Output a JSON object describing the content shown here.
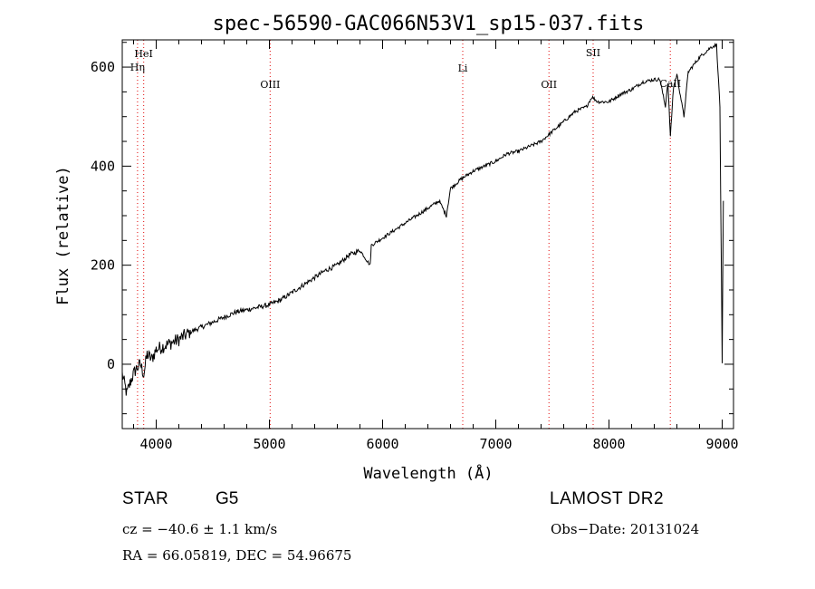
{
  "chart_data": {
    "type": "line",
    "title": "spec-56590-GAC066N53V1_sp15-037.fits",
    "xlabel": "Wavelength (Å)",
    "ylabel": "Flux (relative)",
    "xlim": [
      3700,
      9100
    ],
    "ylim": [
      -130,
      655
    ],
    "xticks": [
      4000,
      5000,
      6000,
      7000,
      8000,
      9000
    ],
    "yticks": [
      0,
      200,
      400,
      600
    ],
    "x_minor_step": 200,
    "y_minor_step": 50,
    "series": [
      {
        "name": "flux",
        "x": [
          3700,
          3740,
          3780,
          3820,
          3860,
          3890,
          3920,
          3960,
          4000,
          4100,
          4200,
          4300,
          4400,
          4500,
          4600,
          4700,
          4800,
          4900,
          5000,
          5100,
          5200,
          5300,
          5400,
          5500,
          5600,
          5700,
          5800,
          5890,
          5900,
          6000,
          6100,
          6200,
          6300,
          6400,
          6500,
          6563,
          6600,
          6700,
          6800,
          6900,
          7000,
          7100,
          7200,
          7300,
          7400,
          7500,
          7600,
          7700,
          7800,
          7850,
          7900,
          8000,
          8100,
          8200,
          8300,
          8400,
          8450,
          8498,
          8520,
          8542,
          8570,
          8600,
          8662,
          8700,
          8800,
          8900,
          8950,
          8980,
          9000,
          9010
        ],
        "y": [
          -20,
          -60,
          -30,
          -10,
          0,
          -20,
          20,
          10,
          30,
          40,
          50,
          65,
          75,
          85,
          95,
          105,
          110,
          115,
          120,
          130,
          145,
          160,
          175,
          190,
          200,
          220,
          230,
          200,
          240,
          255,
          270,
          285,
          300,
          315,
          330,
          300,
          355,
          375,
          390,
          400,
          410,
          425,
          430,
          440,
          450,
          470,
          490,
          510,
          520,
          540,
          530,
          530,
          545,
          555,
          570,
          575,
          575,
          520,
          570,
          460,
          560,
          585,
          500,
          590,
          620,
          640,
          645,
          520,
          0,
          330
        ]
      }
    ],
    "lines": [
      {
        "label": "HeI",
        "wavelength": 3889
      },
      {
        "label": "Hη",
        "wavelength": 3835
      },
      {
        "label": "OIII",
        "wavelength": 5007
      },
      {
        "label": "Li",
        "wavelength": 6708
      },
      {
        "label": "OII",
        "wavelength": 7470
      },
      {
        "label": "SII",
        "wavelength": 7860
      },
      {
        "label": "CaII",
        "wavelength": 8542
      }
    ],
    "colors": {
      "axis": "#000000",
      "spectrum": "#000000",
      "line_marker": "#e63030"
    }
  },
  "info": {
    "class": "STAR",
    "subclass": "G5",
    "survey": "LAMOST DR2",
    "redshift": "cz = −40.6 ± 1.1 km/s",
    "obs_date": "Obs−Date: 20131024",
    "coords": "RA =  66.05819, DEC =  54.96675"
  }
}
